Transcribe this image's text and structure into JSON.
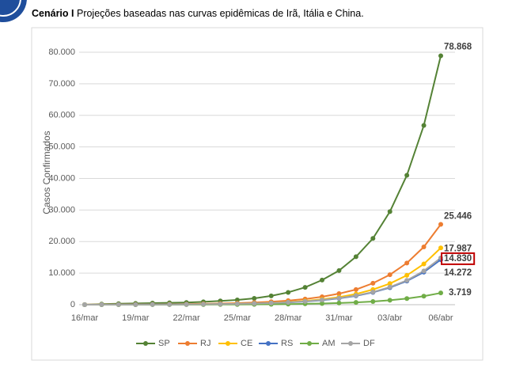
{
  "chart_data": {
    "type": "line",
    "title": "Cenário I",
    "subtitle": "Projeções baseadas nas curvas epidêmicas de Irã, Itália e China.",
    "y_label": "Casos Confirmados",
    "categories": [
      "16/mar",
      null,
      null,
      "19/mar",
      null,
      null,
      "22/mar",
      null,
      null,
      "25/mar",
      null,
      null,
      "28/mar",
      null,
      null,
      "31/mar",
      null,
      null,
      "03/abr",
      null,
      null,
      "06/abr"
    ],
    "ylim": [
      0,
      80000
    ],
    "yticks": [
      0,
      {
        "value": 10000,
        "label": "10.000"
      },
      {
        "value": 20000,
        "label": "20.000"
      },
      {
        "value": 30000,
        "label": "30.000"
      },
      {
        "value": 40000,
        "label": "40.000"
      },
      {
        "value": 50000,
        "label": "50.000"
      },
      {
        "value": 60000,
        "label": "60.000"
      },
      {
        "value": 70000,
        "label": "70.000"
      },
      {
        "value": 80000,
        "label": "80.000"
      }
    ],
    "grid": true,
    "legend": "bottom",
    "series": [
      {
        "name": "SP",
        "color": "#548235",
        "values": [
          0,
          200,
          300,
          400,
          500,
          600,
          700,
          900,
          1200,
          1500,
          2000,
          2800,
          3900,
          5500,
          7800,
          10800,
          15200,
          21000,
          29500,
          41000,
          56800,
          78868
        ],
        "value_labels": [
          null,
          null,
          null,
          null,
          null,
          null,
          null,
          null,
          null,
          null,
          null,
          null,
          null,
          null,
          null,
          null,
          null,
          null,
          null,
          null,
          null,
          "78.868"
        ]
      },
      {
        "name": "RJ",
        "color": "#ed7d31",
        "values": [
          30,
          40,
          60,
          80,
          110,
          150,
          200,
          280,
          380,
          500,
          700,
          950,
          1300,
          1800,
          2500,
          3500,
          4800,
          6800,
          9500,
          13200,
          18300,
          25446
        ],
        "value_labels": [
          null,
          null,
          null,
          null,
          null,
          null,
          null,
          null,
          null,
          null,
          null,
          null,
          null,
          null,
          null,
          null,
          null,
          null,
          null,
          null,
          null,
          "25.446"
        ]
      },
      {
        "name": "CE",
        "color": "#ffc000",
        "values": [
          10,
          20,
          30,
          40,
          60,
          80,
          110,
          160,
          220,
          300,
          430,
          600,
          850,
          1200,
          1700,
          2400,
          3400,
          4800,
          6700,
          9300,
          12900,
          17987
        ],
        "value_labels": [
          null,
          null,
          null,
          null,
          null,
          null,
          null,
          null,
          null,
          null,
          null,
          null,
          null,
          null,
          null,
          null,
          null,
          null,
          null,
          null,
          null,
          "17.987"
        ]
      },
      {
        "name": "RS",
        "color": "#4472c4",
        "values": [
          10,
          15,
          25,
          35,
          50,
          70,
          100,
          140,
          190,
          260,
          370,
          520,
          720,
          1000,
          1400,
          2000,
          2800,
          3900,
          5400,
          7500,
          10300,
          14272
        ],
        "value_labels": [
          null,
          null,
          null,
          null,
          null,
          null,
          null,
          null,
          null,
          null,
          null,
          null,
          null,
          null,
          null,
          null,
          null,
          null,
          null,
          null,
          null,
          "14.272"
        ]
      },
      {
        "name": "AM",
        "color": "#70ad47",
        "values": [
          3,
          5,
          8,
          10,
          15,
          20,
          30,
          40,
          55,
          75,
          100,
          140,
          200,
          270,
          380,
          520,
          720,
          1000,
          1400,
          1950,
          2700,
          3719
        ],
        "value_labels": [
          null,
          null,
          null,
          null,
          null,
          null,
          null,
          null,
          null,
          null,
          null,
          null,
          null,
          null,
          null,
          null,
          null,
          null,
          null,
          null,
          null,
          "3.719"
        ]
      },
      {
        "name": "DF",
        "color": "#a5a5a5",
        "values": [
          12,
          20,
          28,
          40,
          55,
          75,
          105,
          145,
          200,
          280,
          390,
          540,
          760,
          1050,
          1500,
          2100,
          2900,
          4000,
          5600,
          7700,
          10700,
          14830
        ],
        "value_labels": [
          null,
          null,
          null,
          null,
          null,
          null,
          null,
          null,
          null,
          null,
          null,
          null,
          null,
          null,
          null,
          null,
          null,
          null,
          null,
          null,
          null,
          "14.830"
        ]
      }
    ]
  }
}
